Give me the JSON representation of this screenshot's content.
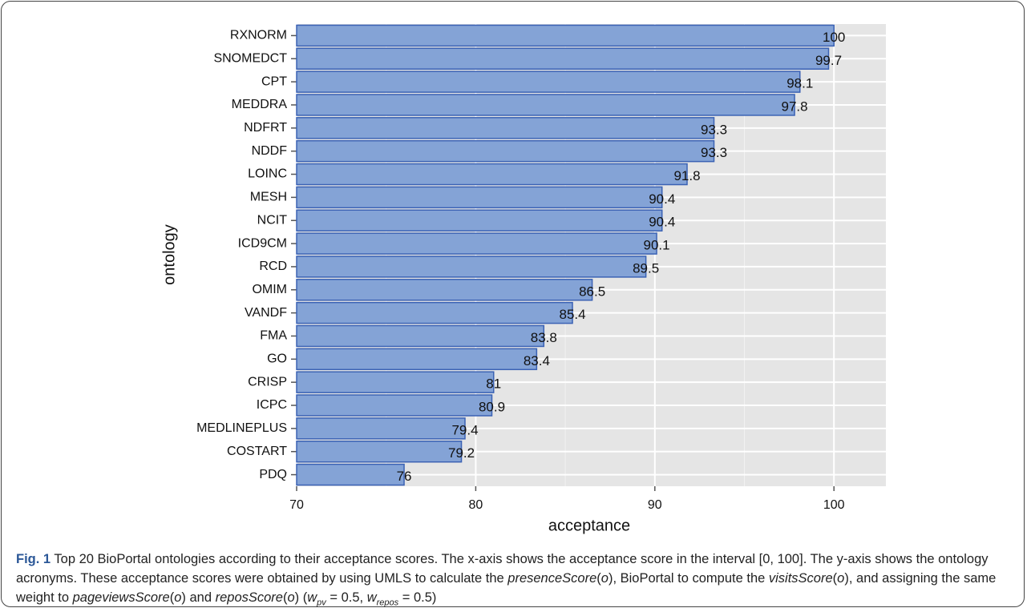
{
  "chart_data": {
    "type": "hbar",
    "xlabel": "acceptance",
    "ylabel": "ontology",
    "categories": [
      "RXNORM",
      "SNOMEDCT",
      "CPT",
      "MEDDRA",
      "NDFRT",
      "NDDF",
      "LOINC",
      "MESH",
      "NCIT",
      "ICD9CM",
      "RCD",
      "OMIM",
      "VANDF",
      "FMA",
      "GO",
      "CRISP",
      "ICPC",
      "MEDLINEPLUS",
      "COSTART",
      "PDQ"
    ],
    "values": [
      100,
      99.7,
      98.1,
      97.8,
      93.3,
      93.3,
      91.8,
      90.4,
      90.4,
      90.1,
      89.5,
      86.5,
      85.4,
      83.8,
      83.4,
      81,
      80.9,
      79.4,
      79.2,
      76
    ],
    "color": "#84a3d6",
    "edge_color": "#3b62b4",
    "xlim": [
      70,
      102.9
    ],
    "xticks": [
      70,
      80,
      90,
      100
    ],
    "grid": true
  },
  "caption": {
    "label": "Fig. 1",
    "parts": [
      "Top 20 BioPortal ontologies according to their acceptance scores. The x-axis shows the acceptance score in the interval [0, 100]. The y-axis shows the ontology acronyms. These acceptance scores were obtained by using UMLS to calculate the ",
      "presenceScore",
      "(",
      "o",
      "), BioPortal to compute the ",
      "visitsScore",
      "(",
      "o",
      "), and assigning the same weight to ",
      "pageviewsScore",
      "(",
      "o",
      ") and ",
      "reposScore",
      "(",
      "o",
      ") (",
      "w",
      "pv",
      " = 0.5, ",
      "w",
      "repos",
      " = 0.5)"
    ]
  }
}
